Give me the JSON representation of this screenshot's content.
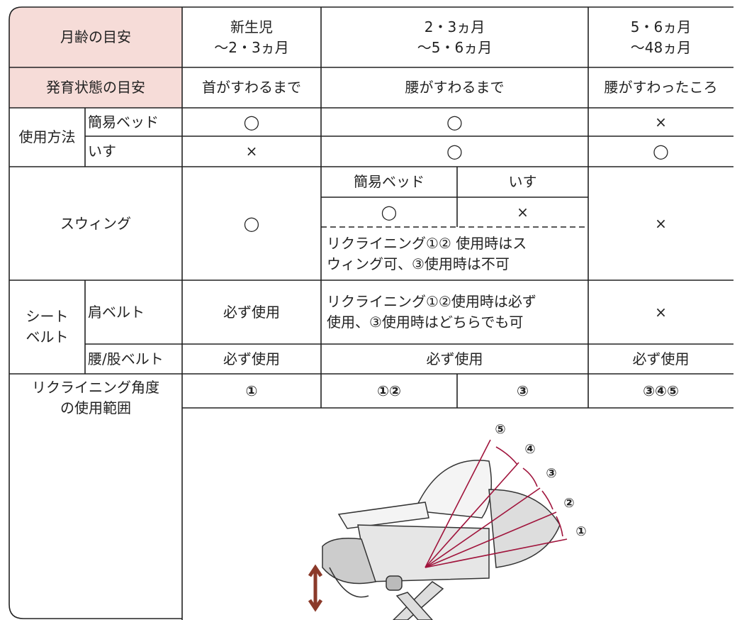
{
  "table": {
    "age_row": [
      "月齢の目安",
      "新生児\n～2・3ヵ月",
      "2・3ヵ月\n～5・6ヵ月",
      "5・6ヵ月\n～48ヵ月"
    ],
    "development_row": [
      "発育状態の目安",
      "首がすわるまで",
      "腰がすわるまで",
      "腰がすわったころ"
    ],
    "usage": {
      "label": "使用方法",
      "rows": [
        [
          "簡易ベッド",
          "◯",
          "◯",
          "×"
        ],
        [
          "いす",
          "×",
          "◯",
          "◯"
        ]
      ]
    },
    "swing": {
      "label": "スウィング",
      "newborn": "◯",
      "sub_headers": [
        "簡易ベッド",
        "いす"
      ],
      "sub_values": [
        "◯",
        "×"
      ],
      "note": "リクライニング①② 使用時はス\nウィング可、③使用時は不可",
      "late": "×"
    },
    "seatbelt": {
      "label": "シート\nベルト",
      "shoulder": [
        "肩ベルト",
        "必ず使用",
        "リクライニング①②使用時は必ず\n使用、③使用時はどちらでも可",
        "×"
      ],
      "waist": [
        "腰/股ベルト",
        "必ず使用",
        "必ず使用",
        "必ず使用"
      ]
    },
    "recline": {
      "label": "リクライニング角度\nの使用範囲",
      "values": [
        "①",
        "①②",
        "③",
        "③④⑤"
      ]
    }
  },
  "diagram": {
    "angle_labels": [
      "①",
      "②",
      "③",
      "④",
      "⑤"
    ]
  }
}
